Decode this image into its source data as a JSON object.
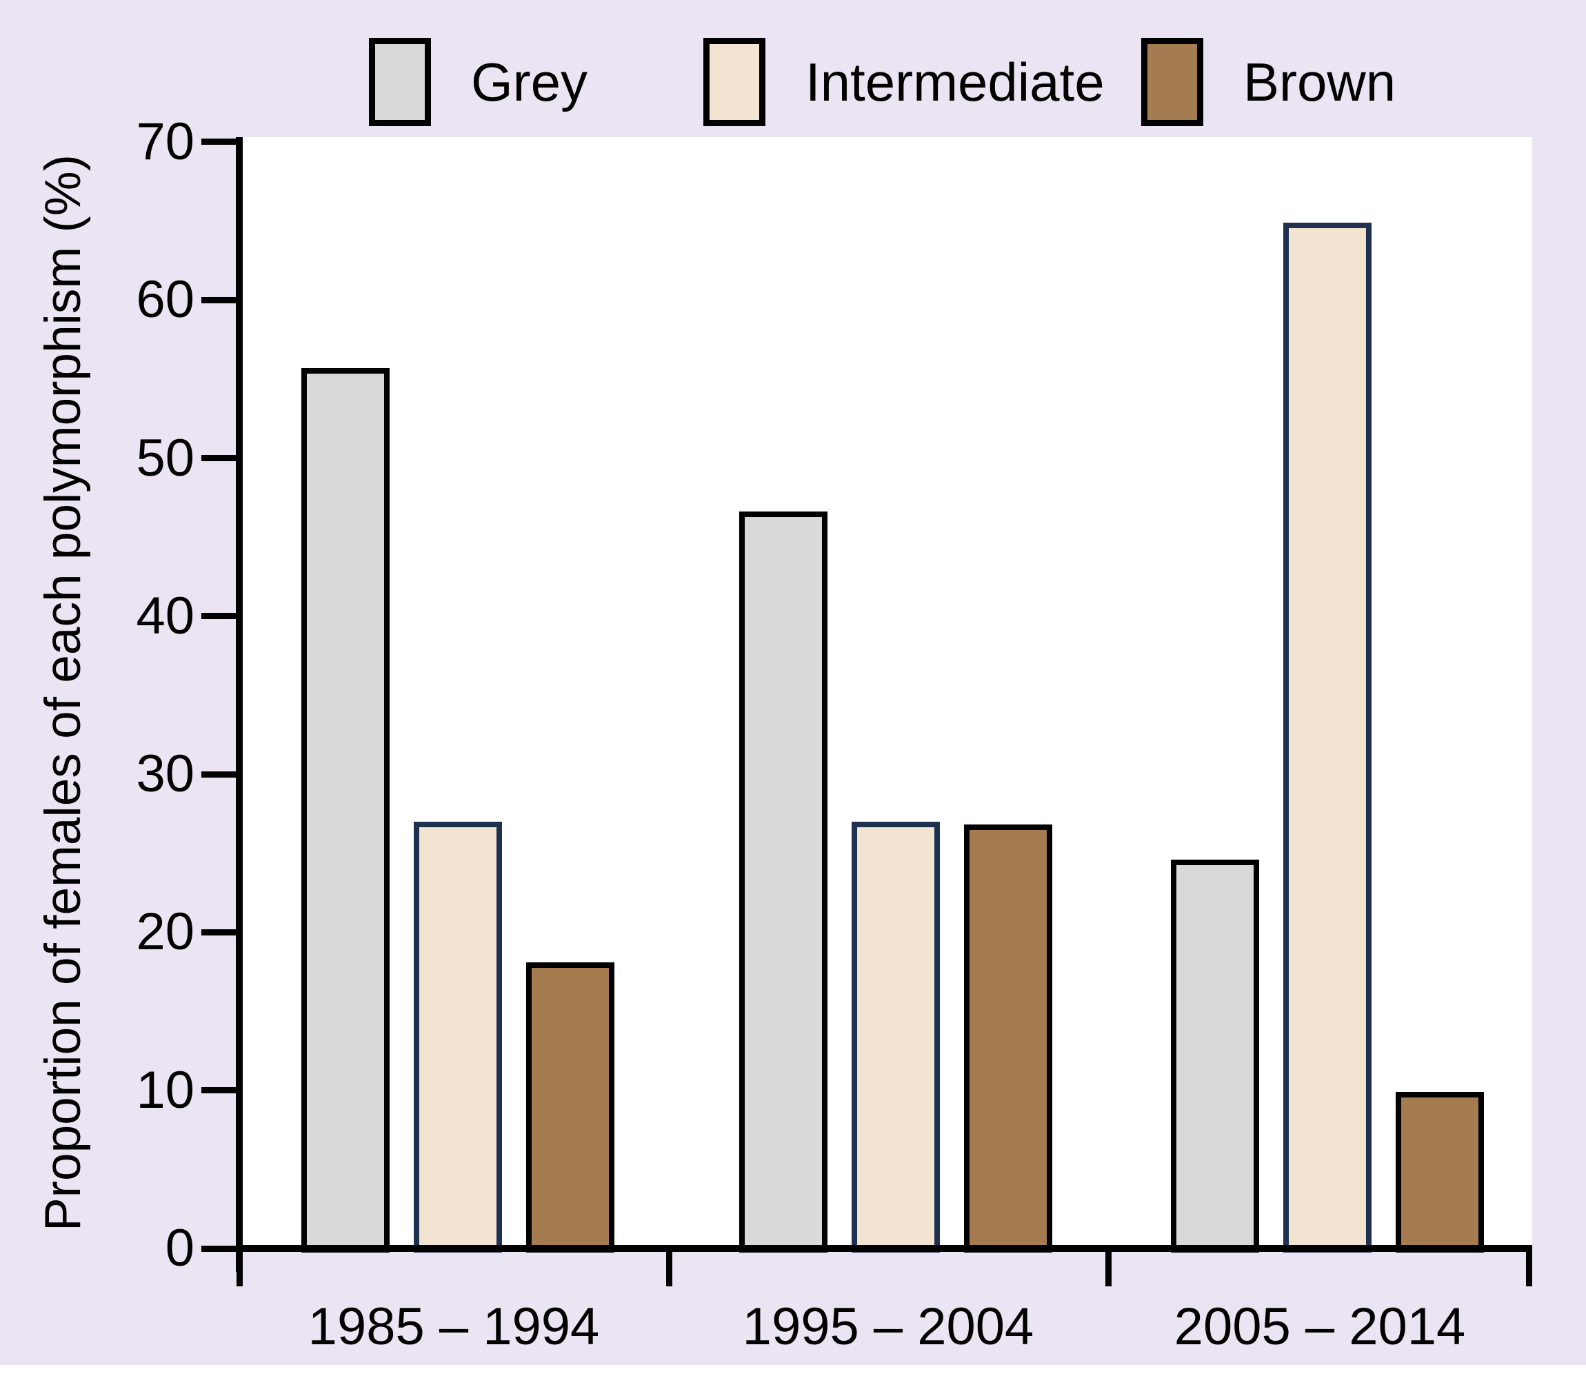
{
  "chart_data": {
    "type": "bar",
    "title": "",
    "xlabel": "",
    "ylabel": "Proportion of females of each polymorphism (%)",
    "ylim": [
      0,
      70
    ],
    "yticks": [
      0,
      10,
      20,
      30,
      40,
      50,
      60,
      70
    ],
    "categories": [
      "1985 – 1994",
      "1995 – 2004",
      "2005 – 2014"
    ],
    "series": [
      {
        "name": "Grey",
        "values": [
          55.7,
          46.6,
          24.6
        ],
        "fill": "#D9D9D9",
        "border": "#000000"
      },
      {
        "name": "Intermediate",
        "values": [
          27.0,
          27.0,
          64.9
        ],
        "fill": "#F2E4D0",
        "border": "#1E3250"
      },
      {
        "name": "Brown",
        "values": [
          18.1,
          26.8,
          9.9
        ],
        "fill": "#A57C50",
        "border": "#000000"
      }
    ],
    "legend_position": "top",
    "grid": false,
    "background": "#EBE4F2",
    "plot_background": "#FFFFFF",
    "axis_color": "#000000"
  }
}
